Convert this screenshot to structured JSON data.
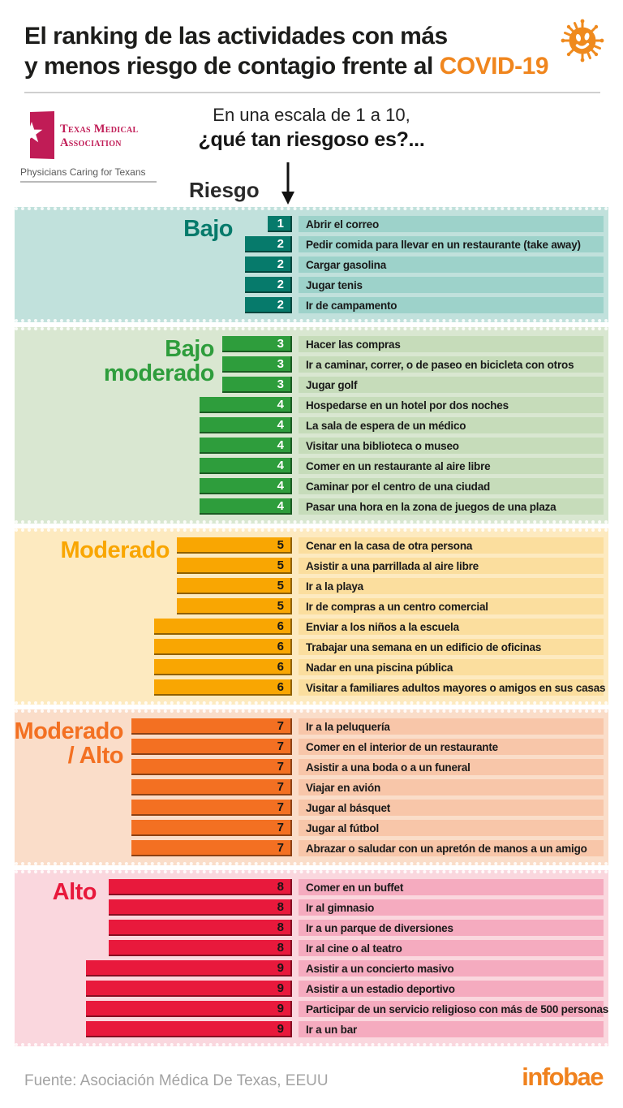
{
  "header": {
    "title_line1": "El ranking de las actividades con más",
    "title_line2_prefix": "y menos riesgo de contagio frente al ",
    "title_highlight": "COVID-19",
    "highlight_color": "#f0861e"
  },
  "logo": {
    "line1": "Texas Medical",
    "line2": "Association",
    "tagline": "Physicians Caring for Texans",
    "brand_color": "#c01c56"
  },
  "scale_note": {
    "line1": "En una escala de 1 a 10,",
    "line2": "¿qué tan riesgoso es?...",
    "axis_label": "Riesgo"
  },
  "chart_data": {
    "type": "bar",
    "title": "El ranking de las actividades con más y menos riesgo de contagio frente al COVID-19",
    "xlabel": "Riesgo",
    "scale_min": 1,
    "scale_max": 10,
    "sections": [
      {
        "title_lines": [
          "Bajo"
        ],
        "title_color": "#067a6b",
        "bg_color": "#c1e1dc",
        "strip_color": "#9dd2ca",
        "bar_color": "#067a6b",
        "number_color": "#ffffff",
        "items": [
          {
            "activity": "Abrir el correo",
            "risk": 1
          },
          {
            "activity": "Pedir comida para llevar en un restaurante (take away)",
            "risk": 2
          },
          {
            "activity": "Cargar gasolina",
            "risk": 2
          },
          {
            "activity": "Jugar tenis",
            "risk": 2
          },
          {
            "activity": "Ir de campamento",
            "risk": 2
          }
        ]
      },
      {
        "title_lines": [
          "Bajo",
          "moderado"
        ],
        "title_color": "#2e9d3c",
        "bg_color": "#d9e7d1",
        "strip_color": "#c6dcba",
        "bar_color": "#2e9d3c",
        "number_color": "#ffffff",
        "items": [
          {
            "activity": "Hacer las compras",
            "risk": 3
          },
          {
            "activity": "Ir a caminar, correr, o de paseo en bicicleta con otros",
            "risk": 3
          },
          {
            "activity": "Jugar golf",
            "risk": 3
          },
          {
            "activity": "Hospedarse en un hotel por dos noches",
            "risk": 4
          },
          {
            "activity": "La sala de espera de un médico",
            "risk": 4
          },
          {
            "activity": "Visitar una biblioteca o museo",
            "risk": 4
          },
          {
            "activity": "Comer en un restaurante al aire libre",
            "risk": 4
          },
          {
            "activity": "Caminar por el centro de una ciudad",
            "risk": 4
          },
          {
            "activity": "Pasar una hora en la zona de juegos de una plaza",
            "risk": 4
          }
        ]
      },
      {
        "title_lines": [
          "Moderado"
        ],
        "title_color": "#f9a602",
        "bg_color": "#fdeac0",
        "strip_color": "#fbde9e",
        "bar_color": "#f9a602",
        "number_color": "#161616",
        "items": [
          {
            "activity": "Cenar en la casa de otra persona",
            "risk": 5
          },
          {
            "activity": "Asistir a una parrillada al aire libre",
            "risk": 5
          },
          {
            "activity": "Ir a la playa",
            "risk": 5
          },
          {
            "activity": "Ir de compras a un centro comercial",
            "risk": 5
          },
          {
            "activity": "Enviar a los niños a la escuela",
            "risk": 6
          },
          {
            "activity": "Trabajar una semana en un edificio de oficinas",
            "risk": 6
          },
          {
            "activity": "Nadar en una piscina pública",
            "risk": 6
          },
          {
            "activity": "Visitar a familiares adultos mayores o amigos en sus casas",
            "risk": 6
          }
        ]
      },
      {
        "title_lines": [
          "Moderado",
          "/ Alto"
        ],
        "title_color": "#f37022",
        "bg_color": "#faddc9",
        "strip_color": "#f8c6a9",
        "bar_color": "#f37022",
        "number_color": "#161616",
        "items": [
          {
            "activity": "Ir a la peluquería",
            "risk": 7
          },
          {
            "activity": "Comer en el interior de un restaurante",
            "risk": 7
          },
          {
            "activity": "Asistir a una boda o a un funeral",
            "risk": 7
          },
          {
            "activity": "Viajar en avión",
            "risk": 7
          },
          {
            "activity": "Jugar al básquet",
            "risk": 7
          },
          {
            "activity": "Jugar al fútbol",
            "risk": 7
          },
          {
            "activity": "Abrazar o saludar con un apretón de manos a un amigo",
            "risk": 7
          }
        ]
      },
      {
        "title_lines": [
          "Alto"
        ],
        "title_color": "#e8193c",
        "bg_color": "#fad7de",
        "strip_color": "#f5abbf",
        "bar_color": "#e8193c",
        "number_color": "#161616",
        "items": [
          {
            "activity": "Comer en un buffet",
            "risk": 8
          },
          {
            "activity": "Ir al gimnasio",
            "risk": 8
          },
          {
            "activity": "Ir a un parque de diversiones",
            "risk": 8
          },
          {
            "activity": "Ir al cine o al teatro",
            "risk": 8
          },
          {
            "activity": "Asistir a un concierto masivo",
            "risk": 9
          },
          {
            "activity": "Asistir a un estadio deportivo",
            "risk": 9
          },
          {
            "activity": "Participar de un servicio religioso con más de 500 personas",
            "risk": 9
          },
          {
            "activity": "Ir a un bar",
            "risk": 9
          }
        ]
      }
    ]
  },
  "footer": {
    "source": "Fuente: Asociación Médica De Texas, EEUU",
    "brand": "infobae",
    "brand_color": "#f0821e"
  }
}
